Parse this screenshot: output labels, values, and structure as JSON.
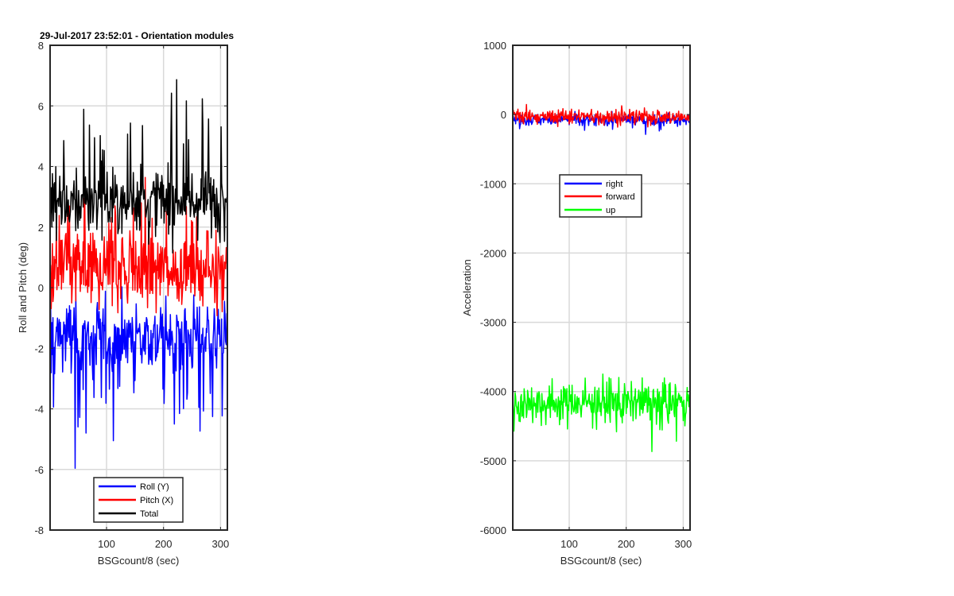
{
  "chart_data": [
    {
      "type": "line",
      "title": "29-Jul-2017 23:52:01 - Orientation modules",
      "xlabel": "BSGcount/8 (sec)",
      "ylabel": "Roll and Pitch (deg)",
      "xlim": [
        1,
        312
      ],
      "ylim": [
        -8,
        8
      ],
      "xticks": [
        100,
        200,
        300
      ],
      "yticks": [
        -8,
        -6,
        -4,
        -2,
        0,
        2,
        4,
        6,
        8
      ],
      "grid": true,
      "legend_position": "bottom-center",
      "series": [
        {
          "name": "Roll (Y)",
          "color": "#0000ff",
          "mean": -1.6,
          "noise": 1.0,
          "spike_dir": -1,
          "spike_mag": 3.5,
          "min": -7.7,
          "max": 0.5
        },
        {
          "name": "Pitch (X)",
          "color": "#ff0000",
          "mean": 0.6,
          "noise": 1.1,
          "spike_dir": 1,
          "spike_mag": 2.2,
          "min": -3.2,
          "max": 4.0
        },
        {
          "name": "Total",
          "color": "#000000",
          "mean": 2.8,
          "noise": 0.9,
          "spike_dir": 1,
          "spike_mag": 3.0,
          "min": 0.8,
          "max": 7.6
        }
      ]
    },
    {
      "type": "line",
      "title": "",
      "xlabel": "BSGcount/8 (sec)",
      "ylabel": "Acceleration",
      "xlim": [
        1,
        312
      ],
      "ylim": [
        -6000,
        1000
      ],
      "xticks": [
        100,
        200,
        300
      ],
      "yticks": [
        -6000,
        -5000,
        -4000,
        -3000,
        -2000,
        -1000,
        0,
        1000
      ],
      "grid": true,
      "legend_position": "upper-center",
      "series": [
        {
          "name": "right",
          "color": "#0000ff",
          "mean": -70,
          "noise": 70,
          "spike_dir": -1,
          "spike_mag": 150,
          "min": -520,
          "max": 150
        },
        {
          "name": "forward",
          "color": "#ff0000",
          "mean": -40,
          "noise": 90,
          "spike_dir": 1,
          "spike_mag": 120,
          "min": -380,
          "max": 200
        },
        {
          "name": "up",
          "color": "#00ff00",
          "mean": -4150,
          "noise": 260,
          "spike_dir": -1,
          "spike_mag": 450,
          "min": -5350,
          "max": -3280
        }
      ]
    }
  ]
}
